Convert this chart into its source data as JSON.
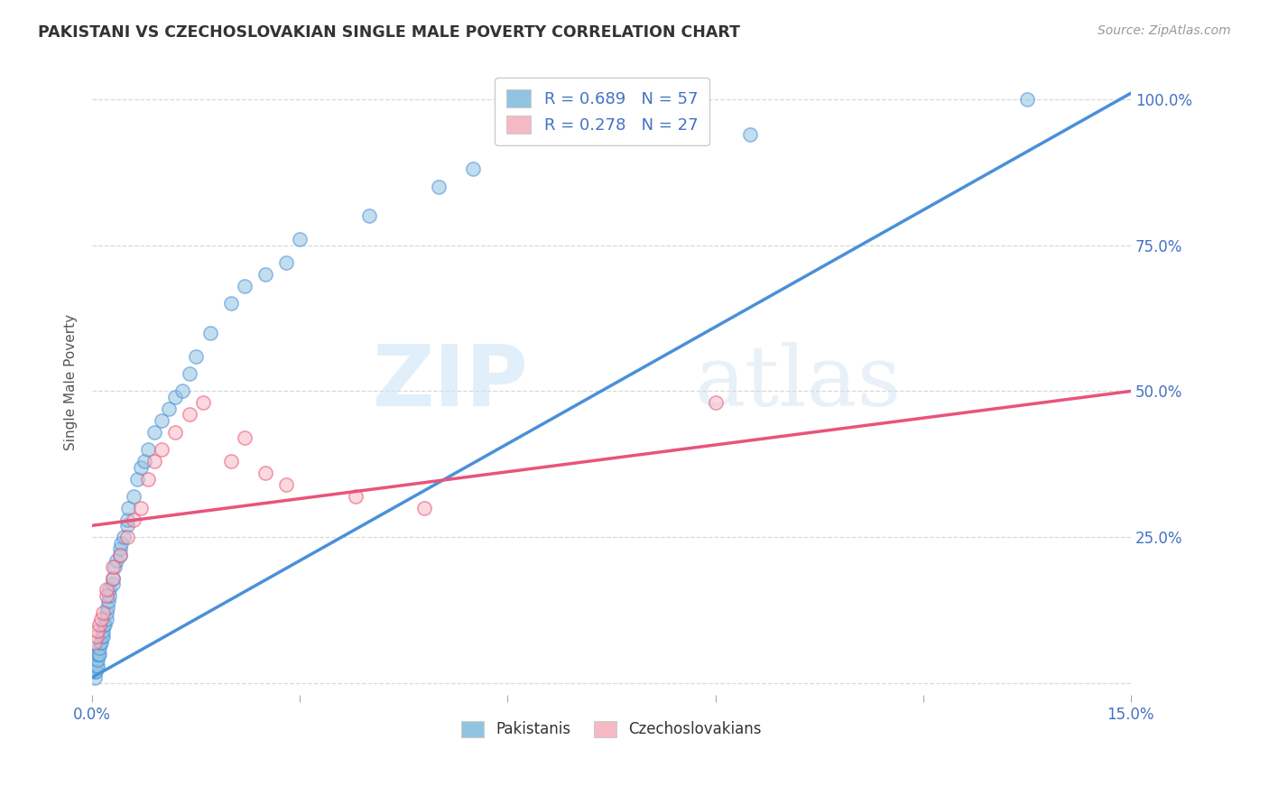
{
  "title": "PAKISTANI VS CZECHOSLOVAKIAN SINGLE MALE POVERTY CORRELATION CHART",
  "source": "Source: ZipAtlas.com",
  "ylabel": "Single Male Poverty",
  "x_min": 0.0,
  "x_max": 0.15,
  "y_min": -0.02,
  "y_max": 1.05,
  "x_ticks": [
    0.0,
    0.03,
    0.06,
    0.09,
    0.12,
    0.15
  ],
  "x_tick_labels": [
    "0.0%",
    "",
    "",
    "",
    "",
    "15.0%"
  ],
  "y_ticks": [
    0.0,
    0.25,
    0.5,
    0.75,
    1.0
  ],
  "y_tick_labels": [
    "",
    "25.0%",
    "50.0%",
    "75.0%",
    "100.0%"
  ],
  "pakistani_R": 0.689,
  "pakistani_N": 57,
  "czech_R": 0.278,
  "czech_N": 27,
  "pakistani_color": "#91c4e0",
  "czech_color": "#f5b8c4",
  "pakistani_line_color": "#4a90d9",
  "czech_line_color": "#e8547a",
  "pakistani_scatter_x": [
    0.0003,
    0.0004,
    0.0005,
    0.0006,
    0.0007,
    0.0008,
    0.0008,
    0.0009,
    0.001,
    0.001,
    0.0012,
    0.0013,
    0.0014,
    0.0015,
    0.0016,
    0.0017,
    0.0018,
    0.002,
    0.002,
    0.0022,
    0.0023,
    0.0024,
    0.0025,
    0.003,
    0.003,
    0.0032,
    0.0035,
    0.004,
    0.004,
    0.0042,
    0.0045,
    0.005,
    0.005,
    0.0052,
    0.006,
    0.0065,
    0.007,
    0.0075,
    0.008,
    0.009,
    0.01,
    0.011,
    0.012,
    0.013,
    0.014,
    0.015,
    0.017,
    0.02,
    0.022,
    0.025,
    0.028,
    0.03,
    0.04,
    0.05,
    0.055,
    0.095,
    0.135
  ],
  "pakistani_scatter_y": [
    0.01,
    0.02,
    0.02,
    0.03,
    0.03,
    0.04,
    0.05,
    0.05,
    0.05,
    0.06,
    0.07,
    0.07,
    0.08,
    0.08,
    0.09,
    0.1,
    0.1,
    0.11,
    0.12,
    0.13,
    0.14,
    0.15,
    0.16,
    0.17,
    0.18,
    0.2,
    0.21,
    0.22,
    0.23,
    0.24,
    0.25,
    0.27,
    0.28,
    0.3,
    0.32,
    0.35,
    0.37,
    0.38,
    0.4,
    0.43,
    0.45,
    0.47,
    0.49,
    0.5,
    0.53,
    0.56,
    0.6,
    0.65,
    0.68,
    0.7,
    0.72,
    0.76,
    0.8,
    0.85,
    0.88,
    0.94,
    1.0
  ],
  "czech_scatter_x": [
    0.0004,
    0.0006,
    0.0008,
    0.001,
    0.0013,
    0.0015,
    0.002,
    0.002,
    0.003,
    0.003,
    0.004,
    0.005,
    0.006,
    0.007,
    0.008,
    0.009,
    0.01,
    0.012,
    0.014,
    0.016,
    0.02,
    0.022,
    0.025,
    0.028,
    0.038,
    0.048,
    0.09
  ],
  "czech_scatter_y": [
    0.07,
    0.08,
    0.09,
    0.1,
    0.11,
    0.12,
    0.15,
    0.16,
    0.18,
    0.2,
    0.22,
    0.25,
    0.28,
    0.3,
    0.35,
    0.38,
    0.4,
    0.43,
    0.46,
    0.48,
    0.38,
    0.42,
    0.36,
    0.34,
    0.32,
    0.3,
    0.48
  ],
  "pakistani_line_x": [
    0.0,
    0.15
  ],
  "pakistani_line_y": [
    0.01,
    1.01
  ],
  "czech_line_x": [
    0.0,
    0.15
  ],
  "czech_line_y": [
    0.27,
    0.5
  ],
  "watermark_zip": "ZIP",
  "watermark_atlas": "atlas",
  "background_color": "#ffffff",
  "grid_color": "#d8d8d8"
}
